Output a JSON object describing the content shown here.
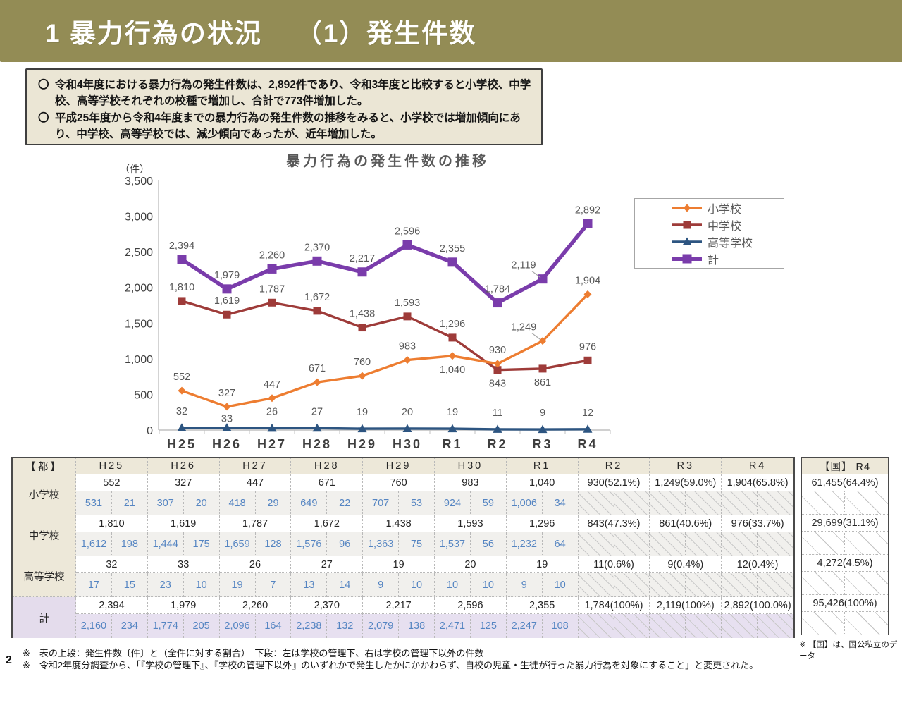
{
  "header": {
    "title_left": "1 暴力行為の状況",
    "title_right": "（1）発生件数",
    "bar_color": "#938C55"
  },
  "summary": {
    "items": [
      {
        "bullet": "〇",
        "text": "令和4年度における暴力行為の発生件数は、2,892件であり、令和3年度と比較すると小学校、中学校、高等学校それぞれの校種で増加し、合計で773件増加した。"
      },
      {
        "bullet": "〇",
        "text": "平成25年度から令和4年度までの暴力行為の発生件数の推移をみると、小学校では増加傾向にあり、中学校、高等学校では、減少傾向であったが、近年増加した。"
      }
    ]
  },
  "chart_data": {
    "type": "line",
    "title": "暴力行為の発生件数の推移",
    "unit_label": "（件）",
    "categories": [
      "H25",
      "H26",
      "H27",
      "H28",
      "H29",
      "H30",
      "R1",
      "R2",
      "R3",
      "R4"
    ],
    "y_ticks": [
      "0",
      "500",
      "1,000",
      "1,500",
      "2,000",
      "2,500",
      "3,000",
      "3,500"
    ],
    "ylim": [
      0,
      3500
    ],
    "grid": false,
    "legend_position": "right",
    "series": [
      {
        "name": "小学校",
        "color": "#ED7D31",
        "marker": "diamond",
        "thick": false,
        "values": [
          552,
          327,
          447,
          671,
          760,
          983,
          1040,
          930,
          1249,
          1904
        ],
        "labels": [
          "552",
          "327",
          "447",
          "671",
          "760",
          "983",
          "1,040",
          "930",
          "1,249",
          "1,904"
        ],
        "below": [
          6
        ],
        "leader": [
          8
        ],
        "label_dy": -15,
        "label_dy_overrides": {}
      },
      {
        "name": "中学校",
        "color": "#9E3B39",
        "marker": "square",
        "thick": false,
        "values": [
          1810,
          1619,
          1787,
          1672,
          1438,
          1593,
          1296,
          843,
          861,
          976
        ],
        "labels": [
          "1,810",
          "1,619",
          "1,787",
          "1,672",
          "1,438",
          "1,593",
          "1,296",
          "843",
          "861",
          "976"
        ],
        "below": [
          7,
          8
        ],
        "leader": [],
        "label_dy": -15,
        "label_dy_overrides": {}
      },
      {
        "name": "高等学校",
        "color": "#2D5581",
        "marker": "triangle",
        "thick": false,
        "values": [
          32,
          33,
          26,
          27,
          19,
          20,
          19,
          11,
          9,
          12
        ],
        "labels": [
          "32",
          "33",
          "26",
          "27",
          "19",
          "20",
          "19",
          "11",
          "9",
          "12"
        ],
        "below": [],
        "leader": [],
        "label_dy": -19,
        "label_dy_overrides": {
          "1": -8
        }
      },
      {
        "name": "計",
        "color": "#7A3CAB",
        "marker": "square",
        "thick": true,
        "values": [
          2394,
          1979,
          2260,
          2370,
          2217,
          2596,
          2355,
          1784,
          2119,
          2892
        ],
        "labels": [
          "2,394",
          "1,979",
          "2,260",
          "2,370",
          "2,217",
          "2,596",
          "2,355",
          "1,784",
          "2,119",
          "2,892"
        ],
        "below": [],
        "leader": [
          8
        ],
        "label_dy": -15,
        "label_dy_overrides": {}
      }
    ]
  },
  "table": {
    "corner_label": "【都】",
    "col_headers": [
      "H25",
      "H26",
      "H27",
      "H28",
      "H29",
      "H30",
      "R1",
      "R2",
      "R3",
      "R4"
    ],
    "rows": [
      {
        "label": "小学校",
        "is_total": false,
        "totals": [
          "552",
          "327",
          "447",
          "671",
          "760",
          "983",
          "1,040",
          "930(52.1%)",
          "1,249(59.0%)",
          "1,904(65.8%)"
        ],
        "sub": [
          [
            "531",
            "21"
          ],
          [
            "307",
            "20"
          ],
          [
            "418",
            "29"
          ],
          [
            "649",
            "22"
          ],
          [
            "707",
            "53"
          ],
          [
            "924",
            "59"
          ],
          [
            "1,006",
            "34"
          ],
          null,
          null,
          null
        ]
      },
      {
        "label": "中学校",
        "is_total": false,
        "totals": [
          "1,810",
          "1,619",
          "1,787",
          "1,672",
          "1,438",
          "1,593",
          "1,296",
          "843(47.3%)",
          "861(40.6%)",
          "976(33.7%)"
        ],
        "sub": [
          [
            "1,612",
            "198"
          ],
          [
            "1,444",
            "175"
          ],
          [
            "1,659",
            "128"
          ],
          [
            "1,576",
            "96"
          ],
          [
            "1,363",
            "75"
          ],
          [
            "1,537",
            "56"
          ],
          [
            "1,232",
            "64"
          ],
          null,
          null,
          null
        ]
      },
      {
        "label": "高等学校",
        "is_total": false,
        "totals": [
          "32",
          "33",
          "26",
          "27",
          "19",
          "20",
          "19",
          "11(0.6%)",
          "9(0.4%)",
          "12(0.4%)"
        ],
        "sub": [
          [
            "17",
            "15"
          ],
          [
            "23",
            "10"
          ],
          [
            "19",
            "7"
          ],
          [
            "13",
            "14"
          ],
          [
            "9",
            "10"
          ],
          [
            "10",
            "10"
          ],
          [
            "9",
            "10"
          ],
          null,
          null,
          null
        ]
      },
      {
        "label": "計",
        "is_total": true,
        "totals": [
          "2,394",
          "1,979",
          "2,260",
          "2,370",
          "2,217",
          "2,596",
          "2,355",
          "1,784(100%)",
          "2,119(100%)",
          "2,892(100.0%)"
        ],
        "sub": [
          [
            "2,160",
            "234"
          ],
          [
            "1,774",
            "205"
          ],
          [
            "2,096",
            "164"
          ],
          [
            "2,238",
            "132"
          ],
          [
            "2,079",
            "138"
          ],
          [
            "2,471",
            "125"
          ],
          [
            "2,247",
            "108"
          ],
          null,
          null,
          null
        ]
      }
    ]
  },
  "national_table": {
    "header": "【国】 R4",
    "values": [
      "61,455(64.4%)",
      "29,699(31.1%)",
      "4,272(4.5%)",
      "95,426(100%)"
    ],
    "note": "※ 【国】は、国公私立のデータ"
  },
  "footnotes": {
    "line1": "※　表の上段：発生件数〔件〕と（全件に対する割合）　下段：左は学校の管理下、右は学校の管理下以外の件数",
    "line2": "※　令和2年度分調査から、「『学校の管理下』、『学校の管理下以外』のいずれかで発生したかにかかわらず、自校の児童・生徒が行った暴力行為を対象にすること」と変更された。"
  },
  "page_number": "2"
}
